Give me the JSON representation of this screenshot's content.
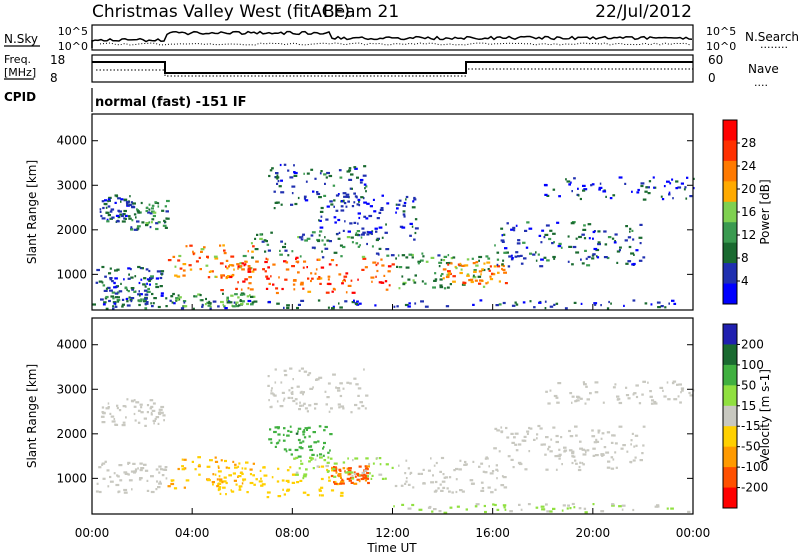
{
  "header": {
    "station": "Christmas Valley West (fitACF)",
    "beam": "Beam 21",
    "date": "22/Jul/2012"
  },
  "nsky_panel": {
    "left_label": "N.Sky",
    "right_label": "N.Search",
    "yticks": [
      "10^5",
      "10^0"
    ],
    "legend_marker": "........"
  },
  "freq_panel": {
    "left_label_line1": "Freq.",
    "left_label_line2": "[MHz]",
    "left_ticks": [
      "18",
      "8"
    ],
    "right_label": "Nave",
    "right_ticks": [
      "60",
      "0"
    ],
    "legend_marker": "...."
  },
  "cpid": {
    "label": "CPID",
    "mode": "normal (fast) -151 IF"
  },
  "colors": {
    "frame": "#000000",
    "power": [
      "#0000ff",
      "#2030b0",
      "#1a6a30",
      "#3a9a50",
      "#7fd050",
      "#ffaa00",
      "#ff7a00",
      "#ff3000",
      "#ff0000"
    ],
    "velocity": [
      "#2020b0",
      "#1a6a30",
      "#40b040",
      "#90e040",
      "#c8c8c0",
      "#ffd000",
      "#ff9a00",
      "#ff5000",
      "#ff0000"
    ]
  },
  "chart_data": [
    {
      "type": "heatmap",
      "parameter": "Power",
      "ylabel": "Slant Range [km]",
      "colorbar_label": "Power [dB]",
      "colorbar_ticks": [
        "28",
        "24",
        "20",
        "16",
        "12",
        "8",
        "4"
      ],
      "colorbar_range": [
        0,
        32
      ],
      "yticks": [
        "4000",
        "3000",
        "2000",
        "1000"
      ],
      "ylim": [
        200,
        4600
      ],
      "xlim": [
        0,
        24
      ],
      "regions": [
        {
          "t0": 0.2,
          "t1": 3.0,
          "r0": 300,
          "r1": 700,
          "level": 8
        },
        {
          "t0": 0.1,
          "t1": 2.8,
          "r0": 700,
          "r1": 1200,
          "level": 7
        },
        {
          "t0": 0.3,
          "t1": 1.5,
          "r0": 2200,
          "r1": 2800,
          "level": 6
        },
        {
          "t0": 1.5,
          "t1": 3.0,
          "r0": 2000,
          "r1": 2700,
          "level": 10
        },
        {
          "t0": 3.0,
          "t1": 6.5,
          "r0": 900,
          "r1": 1700,
          "level": 22
        },
        {
          "t0": 3.0,
          "t1": 6.5,
          "r0": 300,
          "r1": 600,
          "level": 12
        },
        {
          "t0": 5.0,
          "t1": 12.0,
          "r0": 600,
          "r1": 1400,
          "level": 26
        },
        {
          "t0": 6.0,
          "t1": 12.0,
          "r0": 1400,
          "r1": 2000,
          "level": 10
        },
        {
          "t0": 7.0,
          "t1": 11.0,
          "r0": 2500,
          "r1": 3500,
          "level": 6
        },
        {
          "t0": 9.0,
          "t1": 13.0,
          "r0": 1800,
          "r1": 2800,
          "level": 5
        },
        {
          "t0": 12.0,
          "t1": 16.0,
          "r0": 700,
          "r1": 1500,
          "level": 12
        },
        {
          "t0": 14.0,
          "t1": 16.5,
          "r0": 800,
          "r1": 1300,
          "level": 22
        },
        {
          "t0": 16.0,
          "t1": 22.0,
          "r0": 1200,
          "r1": 2200,
          "level": 7
        },
        {
          "t0": 18.0,
          "t1": 24.0,
          "r0": 2700,
          "r1": 3200,
          "level": 5
        },
        {
          "t0": 0.0,
          "t1": 24.0,
          "r0": 250,
          "r1": 450,
          "level": 6
        }
      ]
    },
    {
      "type": "heatmap",
      "parameter": "Velocity",
      "ylabel": "Slant Range [km]",
      "colorbar_label": "Velocity [m s-1]",
      "colorbar_ticks": [
        "200",
        "100",
        "50",
        "15",
        "-15",
        "-50",
        "-100",
        "-200"
      ],
      "colorbar_range": [
        -250,
        250
      ],
      "yticks": [
        "4000",
        "3000",
        "2000",
        "1000"
      ],
      "ylim": [
        200,
        4600
      ],
      "xlim": [
        0,
        24
      ],
      "xlabel": "Time UT",
      "xticks": [
        "00:00",
        "04:00",
        "08:00",
        "12:00",
        "16:00",
        "20:00",
        "00:00"
      ],
      "regions": [
        {
          "t0": 0.1,
          "t1": 3.0,
          "r0": 700,
          "r1": 1400,
          "level": 0
        },
        {
          "t0": 0.3,
          "t1": 3.0,
          "r0": 2200,
          "r1": 2800,
          "level": 0
        },
        {
          "t0": 3.0,
          "t1": 6.5,
          "r0": 800,
          "r1": 1500,
          "level": -80
        },
        {
          "t0": 5.0,
          "t1": 10.0,
          "r0": 600,
          "r1": 1300,
          "level": -60
        },
        {
          "t0": 9.5,
          "t1": 11.0,
          "r0": 900,
          "r1": 1300,
          "level": -150
        },
        {
          "t0": 8.0,
          "t1": 12.0,
          "r0": 1000,
          "r1": 1500,
          "level": 40
        },
        {
          "t0": 7.0,
          "t1": 9.5,
          "r0": 1500,
          "r1": 2200,
          "level": 120
        },
        {
          "t0": 7.0,
          "t1": 11.0,
          "r0": 2500,
          "r1": 3500,
          "level": 0
        },
        {
          "t0": 12.0,
          "t1": 16.5,
          "r0": 700,
          "r1": 1500,
          "level": 0
        },
        {
          "t0": 16.0,
          "t1": 22.0,
          "r0": 1200,
          "r1": 2200,
          "level": 0
        },
        {
          "t0": 18.0,
          "t1": 24.0,
          "r0": 2700,
          "r1": 3200,
          "level": 0
        },
        {
          "t0": 12.0,
          "t1": 24.0,
          "r0": 250,
          "r1": 450,
          "level": 30
        }
      ]
    }
  ]
}
